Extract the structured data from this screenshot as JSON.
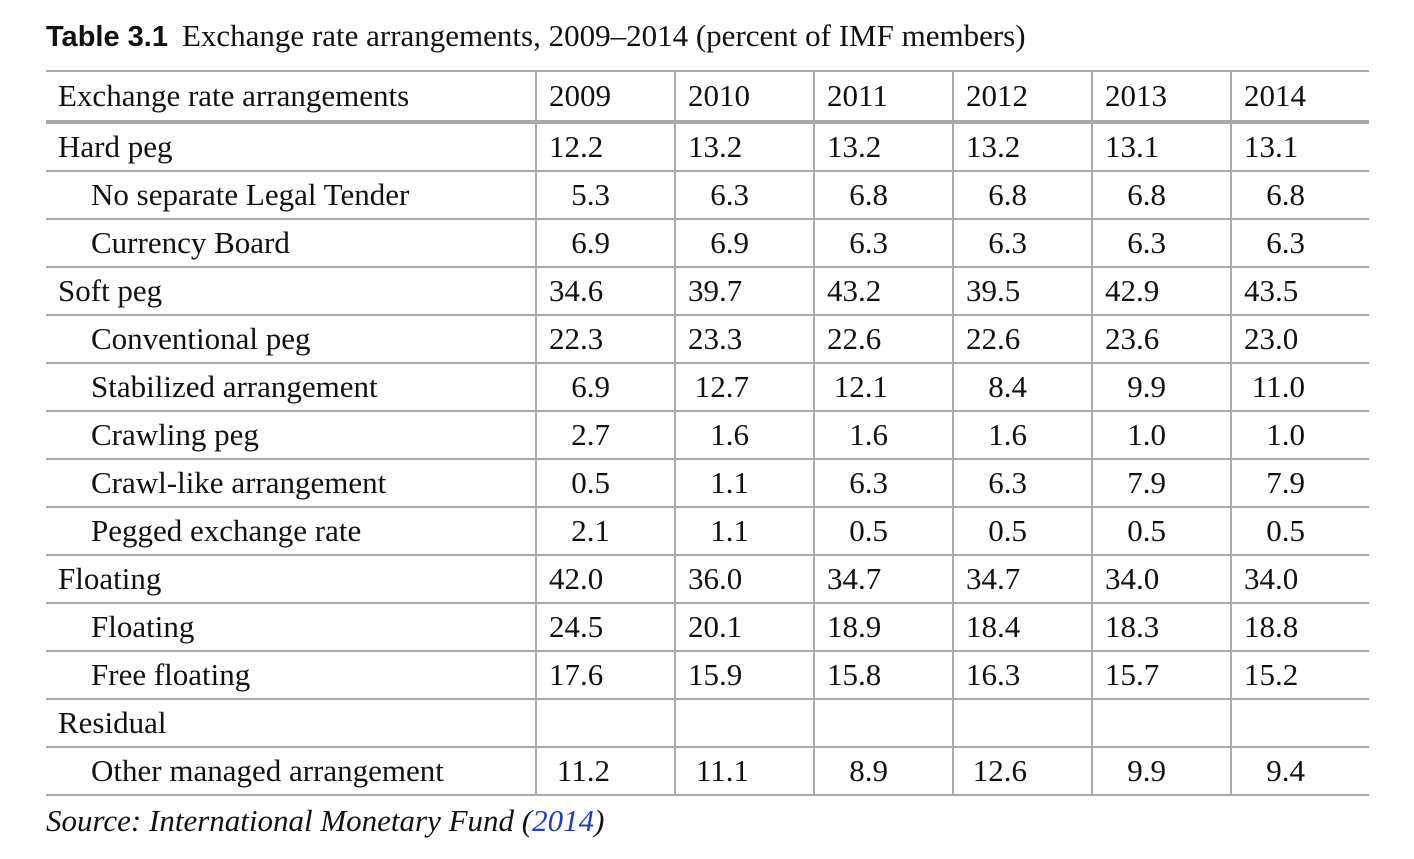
{
  "caption": {
    "label": "Table 3.1",
    "text": "Exchange rate arrangements, 2009–2014 (percent of IMF members)"
  },
  "table": {
    "header": {
      "label": "Exchange rate arrangements",
      "years": [
        "2009",
        "2010",
        "2011",
        "2012",
        "2013",
        "2014"
      ]
    },
    "rows": [
      {
        "label": "Hard peg",
        "values": [
          "12.2",
          "13.2",
          "13.2",
          "13.2",
          "13.1",
          "13.1"
        ]
      },
      {
        "label": "No separate Legal Tender",
        "values": [
          "5.3",
          "6.3",
          "6.8",
          "6.8",
          "6.8",
          "6.8"
        ]
      },
      {
        "label": "Currency Board",
        "values": [
          "6.9",
          "6.9",
          "6.3",
          "6.3",
          "6.3",
          "6.3"
        ]
      },
      {
        "label": "Soft peg",
        "values": [
          "34.6",
          "39.7",
          "43.2",
          "39.5",
          "42.9",
          "43.5"
        ]
      },
      {
        "label": "Conventional peg",
        "values": [
          "22.3",
          "23.3",
          "22.6",
          "22.6",
          "23.6",
          "23.0"
        ]
      },
      {
        "label": "Stabilized arrangement",
        "values": [
          "6.9",
          "12.7",
          "12.1",
          "8.4",
          "9.9",
          "11.0"
        ]
      },
      {
        "label": "Crawling peg",
        "values": [
          "2.7",
          "1.6",
          "1.6",
          "1.6",
          "1.0",
          "1.0"
        ]
      },
      {
        "label": "Crawl-like arrangement",
        "values": [
          "0.5",
          "1.1",
          "6.3",
          "6.3",
          "7.9",
          "7.9"
        ]
      },
      {
        "label": "Pegged exchange rate",
        "values": [
          "2.1",
          "1.1",
          "0.5",
          "0.5",
          "0.5",
          "0.5"
        ]
      },
      {
        "label": "Floating",
        "values": [
          "42.0",
          "36.0",
          "34.7",
          "34.7",
          "34.0",
          "34.0"
        ]
      },
      {
        "label": "Floating",
        "values": [
          "24.5",
          "20.1",
          "18.9",
          "18.4",
          "18.3",
          "18.8"
        ]
      },
      {
        "label": "Free floating",
        "values": [
          "17.6",
          "15.9",
          "15.8",
          "16.3",
          "15.7",
          "15.2"
        ]
      },
      {
        "label": "Residual",
        "values": [
          "",
          "",
          "",
          "",
          "",
          ""
        ]
      },
      {
        "label": "Other managed arrangement",
        "values": [
          "11.2",
          "11.1",
          "8.9",
          "12.6",
          "9.9",
          "9.4"
        ]
      }
    ]
  },
  "source": {
    "prefix": "Source: International Monetary Fund (",
    "link_text": "2014",
    "suffix": ")"
  }
}
